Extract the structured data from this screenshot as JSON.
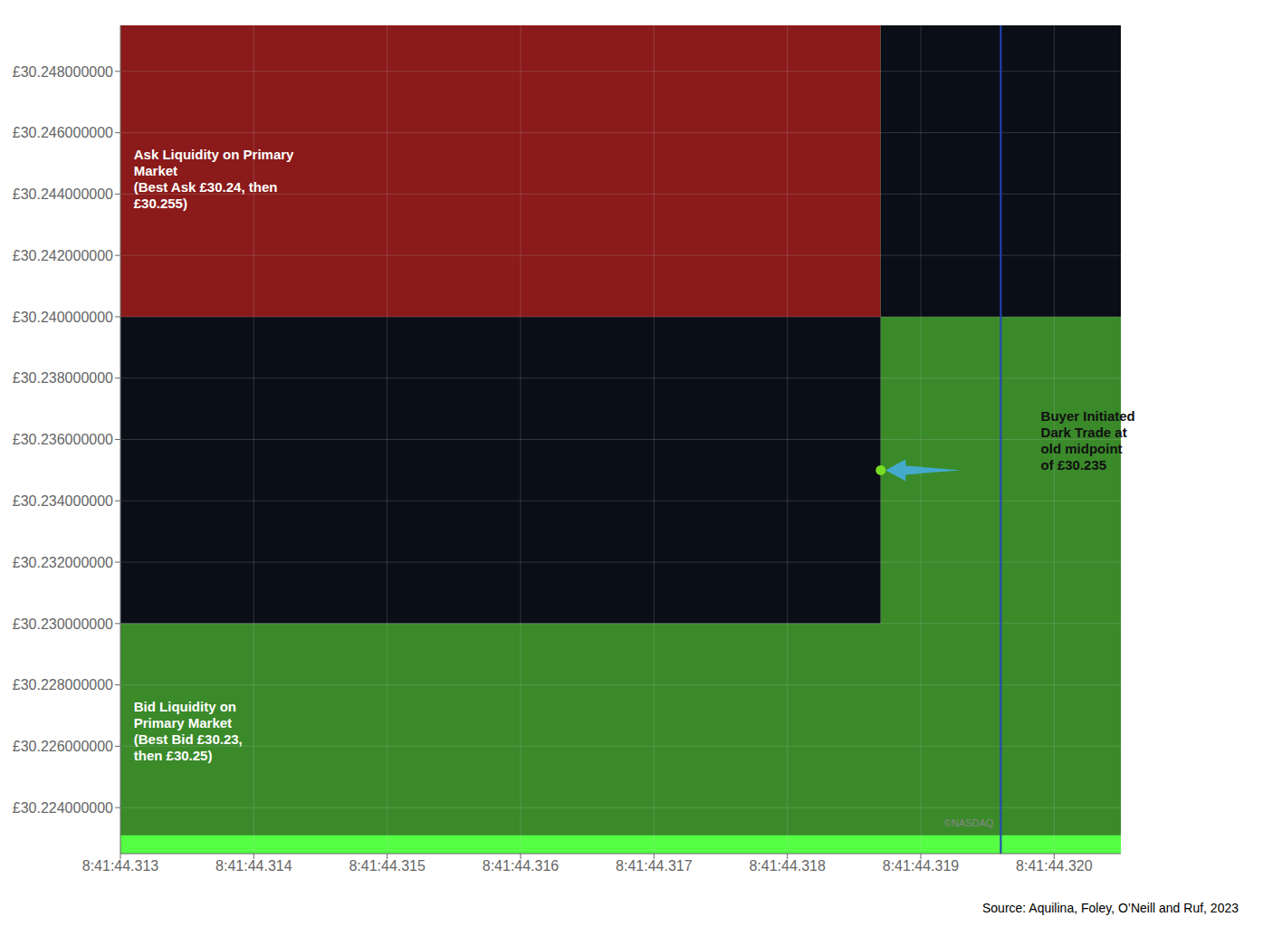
{
  "chart_data": {
    "type": "rectangles",
    "xlim": [
      8414431300,
      8414432050
    ],
    "ylim": [
      30.2225,
      30.2495
    ],
    "xticks": [
      {
        "value": 8414431300,
        "label": "8:41:44.313"
      },
      {
        "value": 8414431400,
        "label": "8:41:44.314"
      },
      {
        "value": 8414431500,
        "label": "8:41:44.315"
      },
      {
        "value": 8414431600,
        "label": "8:41:44.316"
      },
      {
        "value": 8414431700,
        "label": "8:41:44.317"
      },
      {
        "value": 8414431800,
        "label": "8:41:44.318"
      },
      {
        "value": 8414431900,
        "label": "8:41:44.319"
      },
      {
        "value": 8414432000,
        "label": "8:41:44.320"
      }
    ],
    "yticks": [
      {
        "value": 30.248,
        "label": "£30.248000000"
      },
      {
        "value": 30.246,
        "label": "£30.246000000"
      },
      {
        "value": 30.244,
        "label": "£30.244000000"
      },
      {
        "value": 30.242,
        "label": "£30.242000000"
      },
      {
        "value": 30.24,
        "label": "£30.240000000"
      },
      {
        "value": 30.238,
        "label": "£30.238000000"
      },
      {
        "value": 30.236,
        "label": "£30.236000000"
      },
      {
        "value": 30.234,
        "label": "£30.234000000"
      },
      {
        "value": 30.232,
        "label": "£30.232000000"
      },
      {
        "value": 30.23,
        "label": "£30.230000000"
      },
      {
        "value": 30.228,
        "label": "£30.228000000"
      },
      {
        "value": 30.226,
        "label": "£30.226000000"
      },
      {
        "value": 30.224,
        "label": "£30.224000000"
      }
    ],
    "grid": true,
    "rectangles": [
      {
        "x0": 8414431300,
        "y0": 30.2225,
        "x1": 8414432050,
        "y1": 30.23,
        "color": "#3a8a2a"
      },
      {
        "x0": 8414431300,
        "y0": 30.24,
        "x1": 8414431870,
        "y1": 30.2495,
        "color": "#8b1a1a"
      },
      {
        "x0": 8414431300,
        "y0": 30.23,
        "x1": 8414431870,
        "y1": 30.24,
        "color": "#0a0e17"
      },
      {
        "x0": 8414431870,
        "y0": 30.2225,
        "x1": 8414432050,
        "y1": 30.2495,
        "color": "#3a8a2a"
      },
      {
        "x0": 8414431870,
        "y0": 30.24,
        "x1": 8414432050,
        "y1": 30.2495,
        "color": "#0a0e17"
      },
      {
        "x0": 8414431300,
        "y0": 30.2225,
        "x1": 8414432050,
        "y1": 30.2231,
        "color": "#55ff44"
      }
    ],
    "lines": [
      {
        "x": 8414431960,
        "color": "#2244bb"
      }
    ],
    "points": [
      {
        "x": 8414431870,
        "y": 30.235,
        "color": "#77dd22"
      }
    ],
    "arrow": {
      "color": "#44aacc"
    },
    "annotations": [
      {
        "text": "Ask Liquidity on Primary\nMarket\n(Best Ask £30.24, then\n£30.255)",
        "x": 8414431310,
        "y": 30.2445,
        "color": "#ffffff"
      },
      {
        "text": "Bid Liquidity on\nPrimary Market\n(Best Bid £30.23,\nthen £30.25)",
        "x": 8414431310,
        "y": 30.2265,
        "color": "#ffffff"
      },
      {
        "text": "Buyer Initiated\nDark Trade at\nold midpoint\nof £30.235",
        "x": 8414431990,
        "y": 30.236,
        "color": "#111111"
      }
    ],
    "copyright": {
      "text": "©NASDAQ",
      "color": "#888888"
    },
    "source": "Source: Aquilina, Foley, O’Neill and Ruf, 2023"
  }
}
